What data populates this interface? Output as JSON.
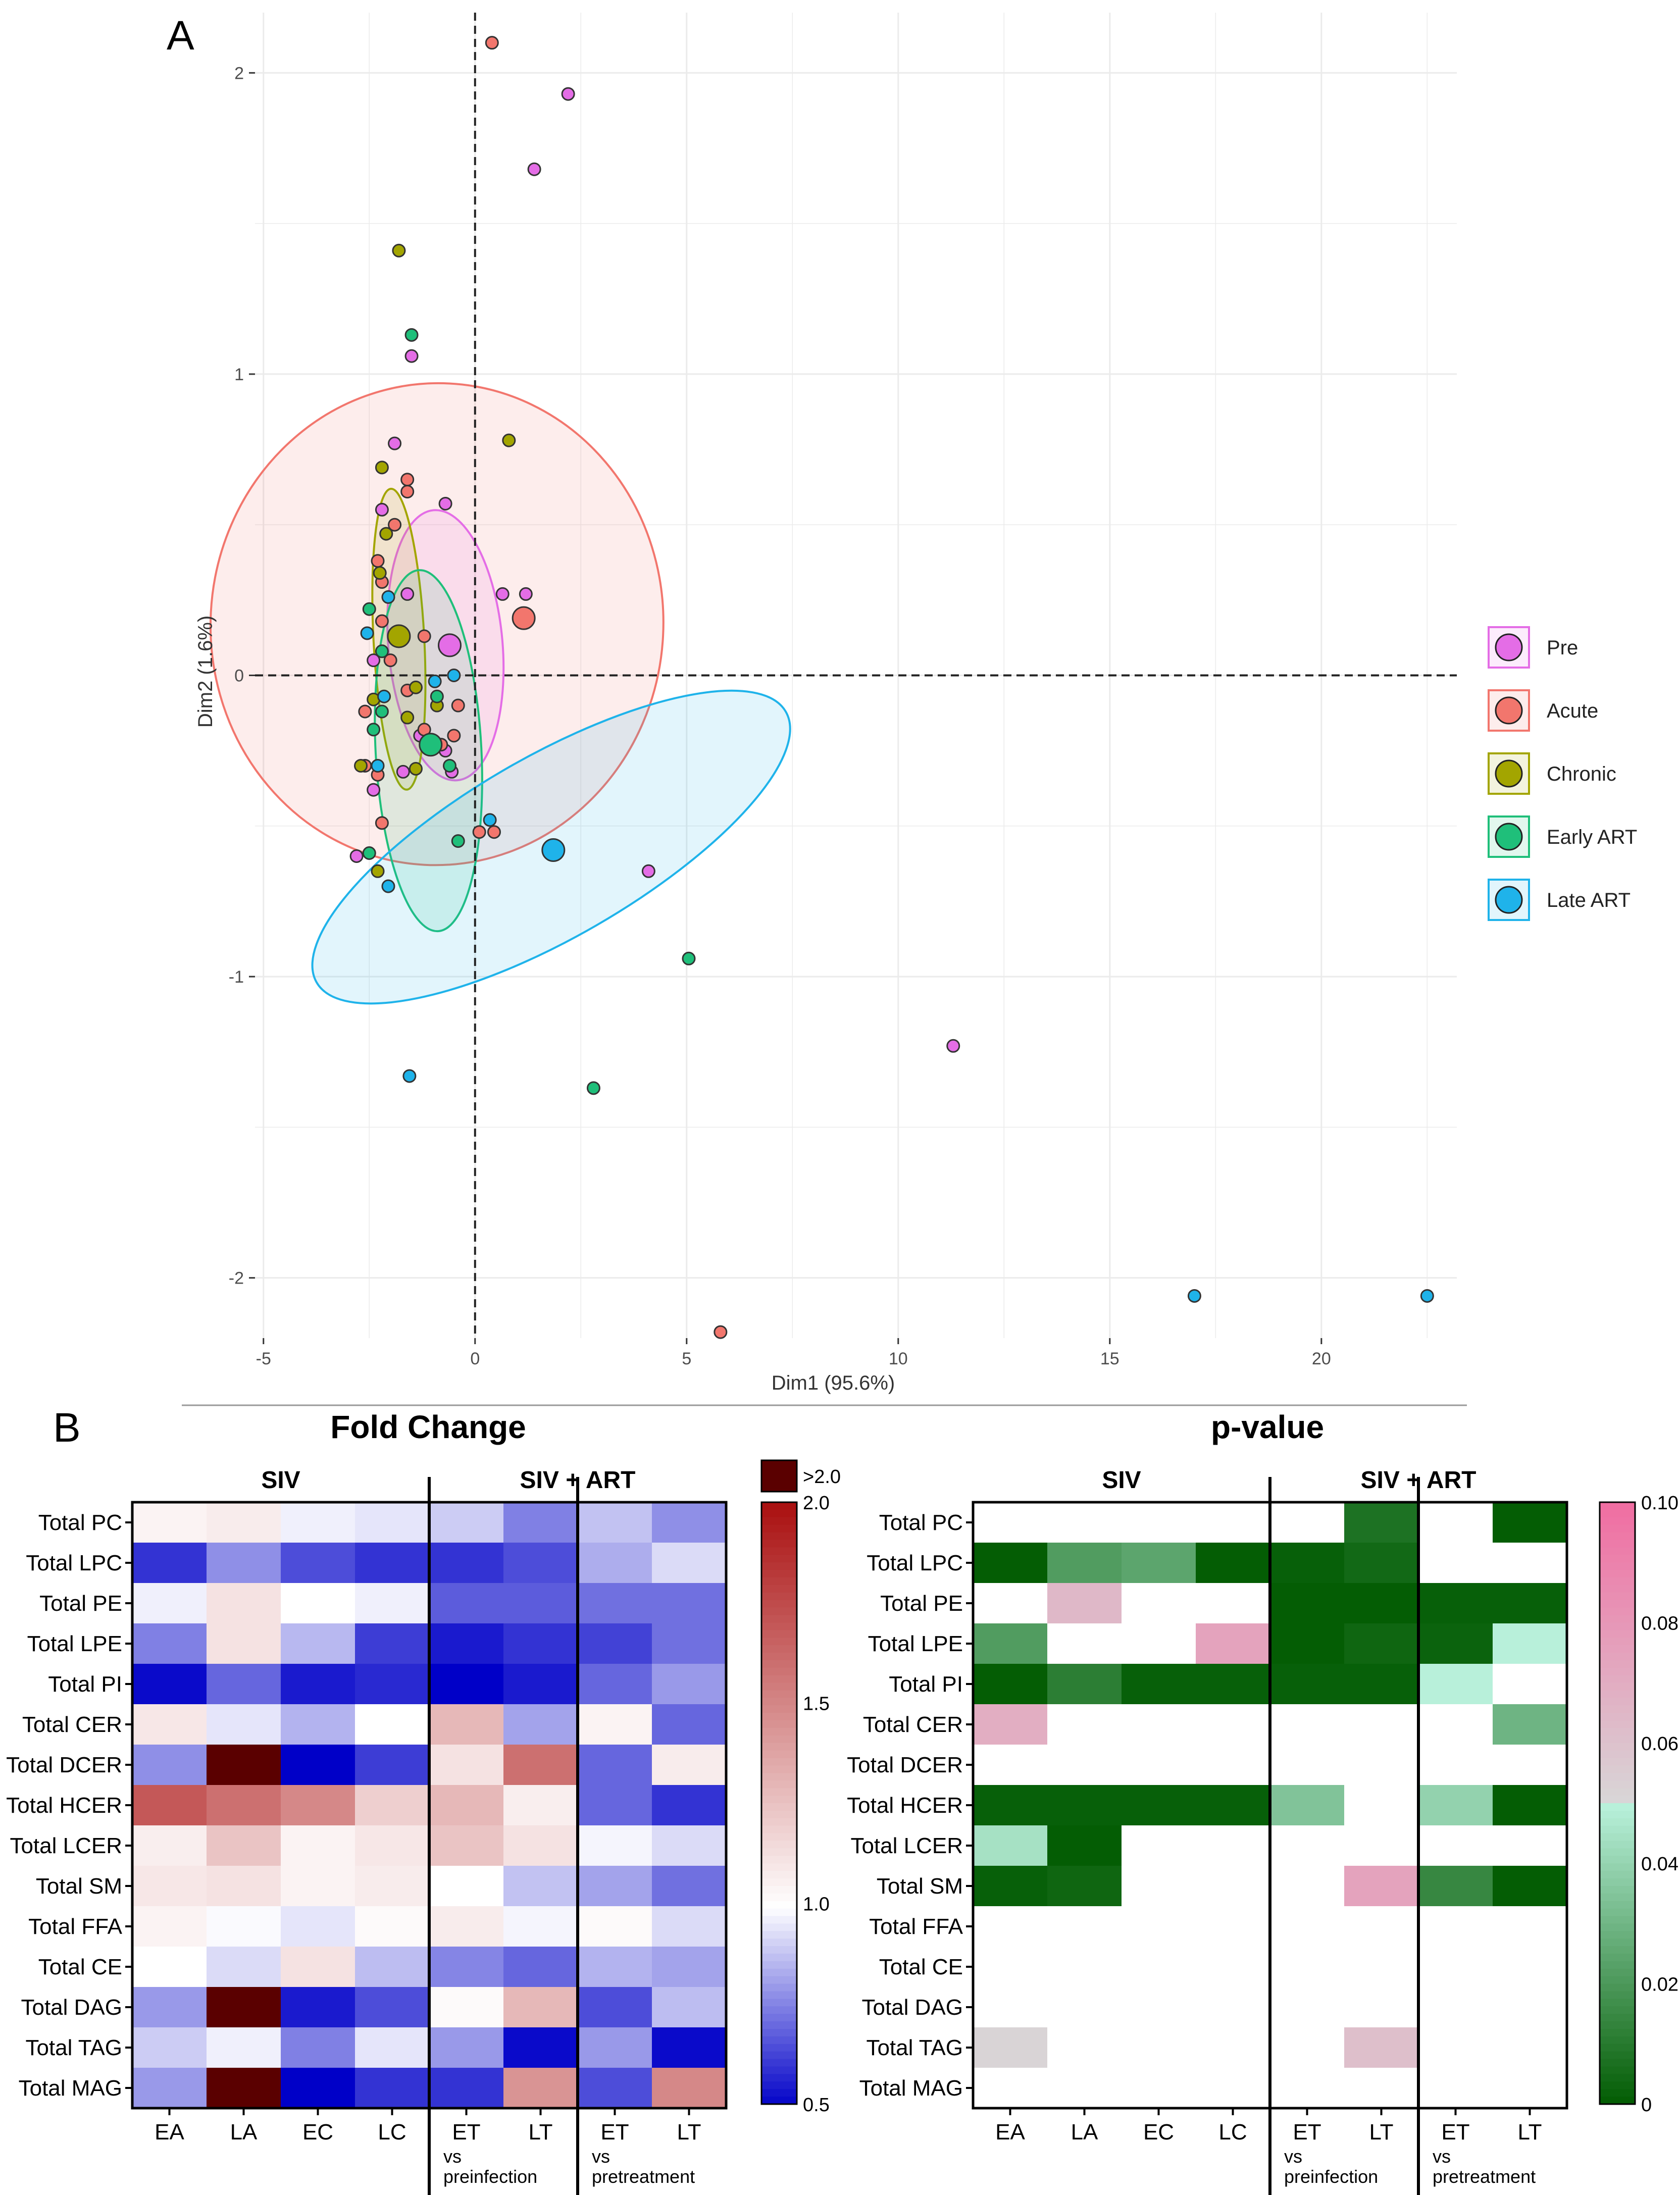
{
  "panels": {
    "a_label": "A",
    "b_label": "B"
  },
  "colors": {
    "Pre": "#e46de6",
    "Acute": "#f2766d",
    "Chronic": "#a3a500",
    "Early ART": "#1fbf7a",
    "Late ART": "#1fb3ea",
    "blue_max": "#0000c8",
    "red_max": "#aa1111",
    "dark_max": "#5a0000",
    "green_max": "#005a00",
    "pink_max": "#f06ea2"
  },
  "chart_data": [
    {
      "type": "scatter",
      "title": "",
      "xlabel": "Dim1 (95.6%)",
      "ylabel": "Dim2 (1.6%)",
      "xlim": [
        -5.2,
        23.2
      ],
      "ylim": [
        -2.2,
        2.2
      ],
      "x_ticks": [
        -5,
        0,
        5,
        10,
        15,
        20
      ],
      "y_ticks": [
        -2,
        -1,
        0,
        1,
        2
      ],
      "x_tick_labels": [
        "-5",
        "0",
        "5",
        "10",
        "15",
        "20"
      ],
      "y_tick_labels": [
        "-2",
        "-1",
        "0",
        "1",
        "2"
      ],
      "grid": true,
      "legend": {
        "placement": "right",
        "entries": [
          "Pre",
          "Acute",
          "Chronic",
          "Early ART",
          "Late ART"
        ]
      },
      "ellipses": [
        {
          "group": "Acute",
          "cx": -0.9,
          "cy": 0.17,
          "rx": 10.7,
          "ry": 0.8,
          "angle": 3
        },
        {
          "group": "Pre",
          "cx": -0.7,
          "cy": 0.1,
          "rx": 2.7,
          "ry": 0.45,
          "angle": -5
        },
        {
          "group": "Chronic",
          "cx": -1.8,
          "cy": 0.12,
          "rx": 1.2,
          "ry": 0.5,
          "angle": -3
        },
        {
          "group": "Early ART",
          "cx": -1.1,
          "cy": -0.25,
          "rx": 2.5,
          "ry": 0.6,
          "angle": -3
        },
        {
          "group": "Late ART",
          "cx": 1.8,
          "cy": -0.57,
          "rx": 16.0,
          "ry": 0.3,
          "angle": -30
        }
      ],
      "centroids": [
        {
          "group": "Pre",
          "x": -0.6,
          "y": 0.1
        },
        {
          "group": "Acute",
          "x": 1.15,
          "y": 0.19
        },
        {
          "group": "Chronic",
          "x": -1.8,
          "y": 0.13
        },
        {
          "group": "Early ART",
          "x": -1.05,
          "y": -0.23
        },
        {
          "group": "Late ART",
          "x": 1.85,
          "y": -0.58
        }
      ],
      "series": [
        {
          "name": "Pre",
          "points": [
            [
              2.2,
              1.93
            ],
            [
              1.4,
              1.68
            ],
            [
              -1.5,
              1.06
            ],
            [
              -1.9,
              0.77
            ],
            [
              -0.7,
              0.57
            ],
            [
              -2.2,
              0.55
            ],
            [
              0.65,
              0.27
            ],
            [
              1.2,
              0.27
            ],
            [
              -1.6,
              0.27
            ],
            [
              -2.4,
              0.05
            ],
            [
              -0.7,
              -0.25
            ],
            [
              -1.7,
              -0.32
            ],
            [
              4.1,
              -0.65
            ],
            [
              11.3,
              -1.23
            ],
            [
              -2.8,
              -0.6
            ],
            [
              -2.4,
              -0.38
            ],
            [
              -0.55,
              -0.32
            ],
            [
              -1.3,
              -0.2
            ]
          ]
        },
        {
          "name": "Acute",
          "points": [
            [
              0.4,
              2.1
            ],
            [
              -1.6,
              0.65
            ],
            [
              -1.6,
              0.61
            ],
            [
              -2.3,
              0.38
            ],
            [
              -1.9,
              0.5
            ],
            [
              -2.2,
              0.31
            ],
            [
              -2.2,
              0.18
            ],
            [
              -1.2,
              0.13
            ],
            [
              -2.0,
              0.05
            ],
            [
              -2.6,
              -0.12
            ],
            [
              -1.6,
              -0.05
            ],
            [
              -1.2,
              -0.18
            ],
            [
              -0.8,
              -0.23
            ],
            [
              -2.3,
              -0.33
            ],
            [
              -2.2,
              -0.49
            ],
            [
              -0.4,
              -0.1
            ],
            [
              0.1,
              -0.52
            ],
            [
              0.45,
              -0.52
            ],
            [
              5.8,
              -2.18
            ],
            [
              -2.6,
              -0.3
            ],
            [
              -0.5,
              -0.2
            ]
          ]
        },
        {
          "name": "Chronic",
          "points": [
            [
              -1.8,
              1.41
            ],
            [
              0.8,
              0.78
            ],
            [
              -2.2,
              0.69
            ],
            [
              -2.1,
              0.47
            ],
            [
              -2.25,
              0.34
            ],
            [
              -1.4,
              -0.04
            ],
            [
              -2.4,
              -0.08
            ],
            [
              -1.4,
              -0.31
            ],
            [
              -2.3,
              -0.65
            ],
            [
              -2.7,
              -0.3
            ],
            [
              -1.6,
              -0.14
            ],
            [
              -0.9,
              -0.1
            ]
          ]
        },
        {
          "name": "Early ART",
          "points": [
            [
              -1.5,
              1.13
            ],
            [
              -2.5,
              0.22
            ],
            [
              -2.2,
              0.08
            ],
            [
              -0.9,
              -0.07
            ],
            [
              -2.4,
              -0.18
            ],
            [
              -0.4,
              -0.55
            ],
            [
              -2.5,
              -0.59
            ],
            [
              5.05,
              -0.94
            ],
            [
              2.8,
              -1.37
            ],
            [
              -2.2,
              -0.12
            ],
            [
              -0.6,
              -0.3
            ]
          ]
        },
        {
          "name": "Late ART",
          "points": [
            [
              -2.55,
              0.14
            ],
            [
              -2.05,
              0.26
            ],
            [
              -0.95,
              -0.02
            ],
            [
              -2.15,
              -0.07
            ],
            [
              -2.3,
              -0.3
            ],
            [
              0.35,
              -0.48
            ],
            [
              -2.05,
              -0.7
            ],
            [
              -1.55,
              -1.33
            ],
            [
              17.0,
              -2.06
            ],
            [
              22.5,
              -2.06
            ],
            [
              -0.5,
              0.0
            ]
          ]
        }
      ]
    },
    {
      "type": "heatmap",
      "title": "Fold Change",
      "rows": [
        "Total PC",
        "Total LPC",
        "Total PE",
        "Total LPE",
        "Total PI",
        "Total CER",
        "Total DCER",
        "Total HCER",
        "Total LCER",
        "Total SM",
        "Total FFA",
        "Total CE",
        "Total DAG",
        "Total TAG",
        "Total MAG"
      ],
      "columns": [
        "EA",
        "LA",
        "EC",
        "LC",
        "ET",
        "LT",
        "ET",
        "LT"
      ],
      "group_headers": [
        "SIV",
        "SIV + ART"
      ],
      "comparison_labels": [
        "vs\npreinfection",
        "vs\npretreatment"
      ],
      "colorbar": {
        "range": [
          0.5,
          2.0
        ],
        "ticks": [
          ">2.0",
          "2.0",
          "1.5",
          "1.0",
          "0.5"
        ]
      },
      "values": [
        [
          1.05,
          1.08,
          0.97,
          0.95,
          0.9,
          0.75,
          0.88,
          0.78
        ],
        [
          0.6,
          0.78,
          0.65,
          0.6,
          0.6,
          0.65,
          0.84,
          0.93
        ],
        [
          0.97,
          1.12,
          1.0,
          0.97,
          0.68,
          0.68,
          0.72,
          0.72
        ],
        [
          0.75,
          1.12,
          0.86,
          0.62,
          0.55,
          0.6,
          0.63,
          0.72
        ],
        [
          0.52,
          0.7,
          0.55,
          0.58,
          0.5,
          0.55,
          0.7,
          0.8
        ],
        [
          1.1,
          0.95,
          0.85,
          1.0,
          1.3,
          0.82,
          1.05,
          0.7
        ],
        [
          0.78,
          2.1,
          0.5,
          0.62,
          1.12,
          1.6,
          0.7,
          1.08
        ],
        [
          1.7,
          1.6,
          1.5,
          1.2,
          1.3,
          1.07,
          0.7,
          0.6
        ],
        [
          1.07,
          1.25,
          1.05,
          1.1,
          1.25,
          1.12,
          0.98,
          0.93
        ],
        [
          1.1,
          1.12,
          1.05,
          1.08,
          1.0,
          0.88,
          0.82,
          0.72
        ],
        [
          1.05,
          0.99,
          0.95,
          1.02,
          1.08,
          0.98,
          1.02,
          0.93
        ],
        [
          1.0,
          0.93,
          1.12,
          0.87,
          0.76,
          0.7,
          0.85,
          0.82
        ],
        [
          0.8,
          2.1,
          0.55,
          0.65,
          1.02,
          1.3,
          0.65,
          0.87
        ],
        [
          0.9,
          0.97,
          0.75,
          0.95,
          0.8,
          0.52,
          0.8,
          0.52
        ],
        [
          0.8,
          2.1,
          0.48,
          0.6,
          0.6,
          1.45,
          0.65,
          1.5
        ]
      ]
    },
    {
      "type": "heatmap",
      "title": "p-value",
      "rows": [
        "Total PC",
        "Total LPC",
        "Total PE",
        "Total LPE",
        "Total PI",
        "Total CER",
        "Total DCER",
        "Total HCER",
        "Total LCER",
        "Total SM",
        "Total FFA",
        "Total CE",
        "Total DAG",
        "Total TAG",
        "Total MAG"
      ],
      "columns": [
        "EA",
        "LA",
        "EC",
        "LC",
        "ET",
        "LT",
        "ET",
        "LT"
      ],
      "group_headers": [
        "SIV",
        "SIV + ART"
      ],
      "comparison_labels": [
        "vs\npreinfection",
        "vs\npretreatment"
      ],
      "colorbar": {
        "range": [
          0,
          0.1
        ],
        "ticks": [
          "0.10",
          "0.08",
          "0.06",
          "0.04",
          "0.02",
          "0"
        ]
      },
      "values": [
        [
          null,
          null,
          null,
          null,
          null,
          0.008,
          null,
          0.001
        ],
        [
          0.001,
          0.022,
          0.025,
          0.001,
          0.002,
          0.005,
          null,
          null
        ],
        [
          null,
          0.065,
          null,
          null,
          0.001,
          0.001,
          0.002,
          0.002
        ],
        [
          0.022,
          null,
          null,
          0.075,
          0.001,
          0.004,
          0.003,
          0.05
        ],
        [
          0.001,
          0.012,
          0.002,
          0.002,
          0.002,
          0.002,
          0.05,
          null
        ],
        [
          0.07,
          null,
          null,
          null,
          null,
          null,
          null,
          0.03
        ],
        [
          null,
          null,
          null,
          null,
          null,
          null,
          null,
          null
        ],
        [
          0.002,
          0.002,
          0.002,
          0.002,
          0.035,
          null,
          0.04,
          0.001
        ],
        [
          0.045,
          0.001,
          null,
          null,
          null,
          null,
          null,
          null
        ],
        [
          0.002,
          0.004,
          null,
          null,
          null,
          0.075,
          0.015,
          0.001
        ],
        [
          null,
          null,
          null,
          null,
          null,
          null,
          null,
          null
        ],
        [
          null,
          null,
          null,
          null,
          null,
          null,
          null,
          null
        ],
        [
          null,
          null,
          null,
          null,
          null,
          null,
          null,
          null
        ],
        [
          0.052,
          null,
          null,
          null,
          null,
          0.062,
          null,
          null
        ],
        [
          null,
          null,
          null,
          null,
          null,
          null,
          null,
          null
        ]
      ]
    }
  ]
}
